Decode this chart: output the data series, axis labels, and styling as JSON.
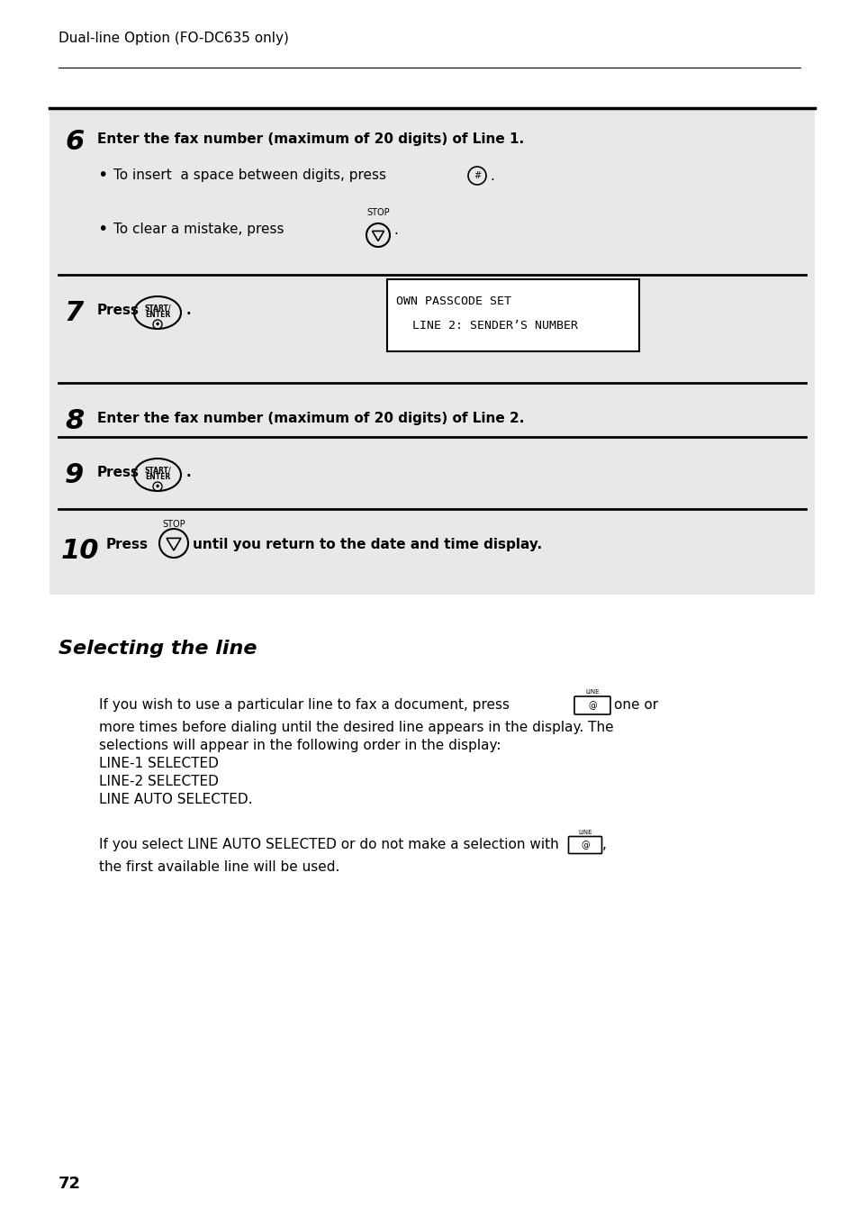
{
  "page_title": "Dual-line Option (FO-DC635 only)",
  "page_number": "72",
  "bg_color": "#ffffff",
  "gray_bg": "#e8e8e8",
  "steps": [
    {
      "num": "6",
      "text": "Enter the fax number (maximum of 20 digits) of Line 1.",
      "sub_bullets": [
        {
          "type": "hash",
          "text": "To insert  a space between digits, press",
          "suffix": " ."
        },
        {
          "type": "stop",
          "text": "To clear a mistake, press",
          "suffix": " ."
        }
      ]
    },
    {
      "num": "7",
      "text": "Press",
      "button": "START/ENTER",
      "suffix": ".",
      "display_box": "OWN PASSCODE SET\n    LINE 2: SENDER’S NUMBER"
    },
    {
      "num": "8",
      "text": "Enter the fax number (maximum of 20 digits) of Line 2."
    },
    {
      "num": "9",
      "text": "Press",
      "button": "START/ENTER",
      "suffix": "."
    },
    {
      "num": "10",
      "text": "Press",
      "button_type": "stop",
      "suffix": "until you return to the date and time display."
    }
  ],
  "section_title": "Selecting the line",
  "section_text1": "If you wish to use a particular line to fax a document, press",
  "section_text2": "one or\nmore times before dialing until the desired line appears in the display. The\nselections will appear in the following order in the display:\nLINE-1 SELECTED\nLINE-2 SELECTED\nLINE AUTO SELECTED.",
  "section_text3": "If you select LINE AUTO SELECTED or do not make a selection with",
  "section_text4": ",\nthe first available line will be used."
}
